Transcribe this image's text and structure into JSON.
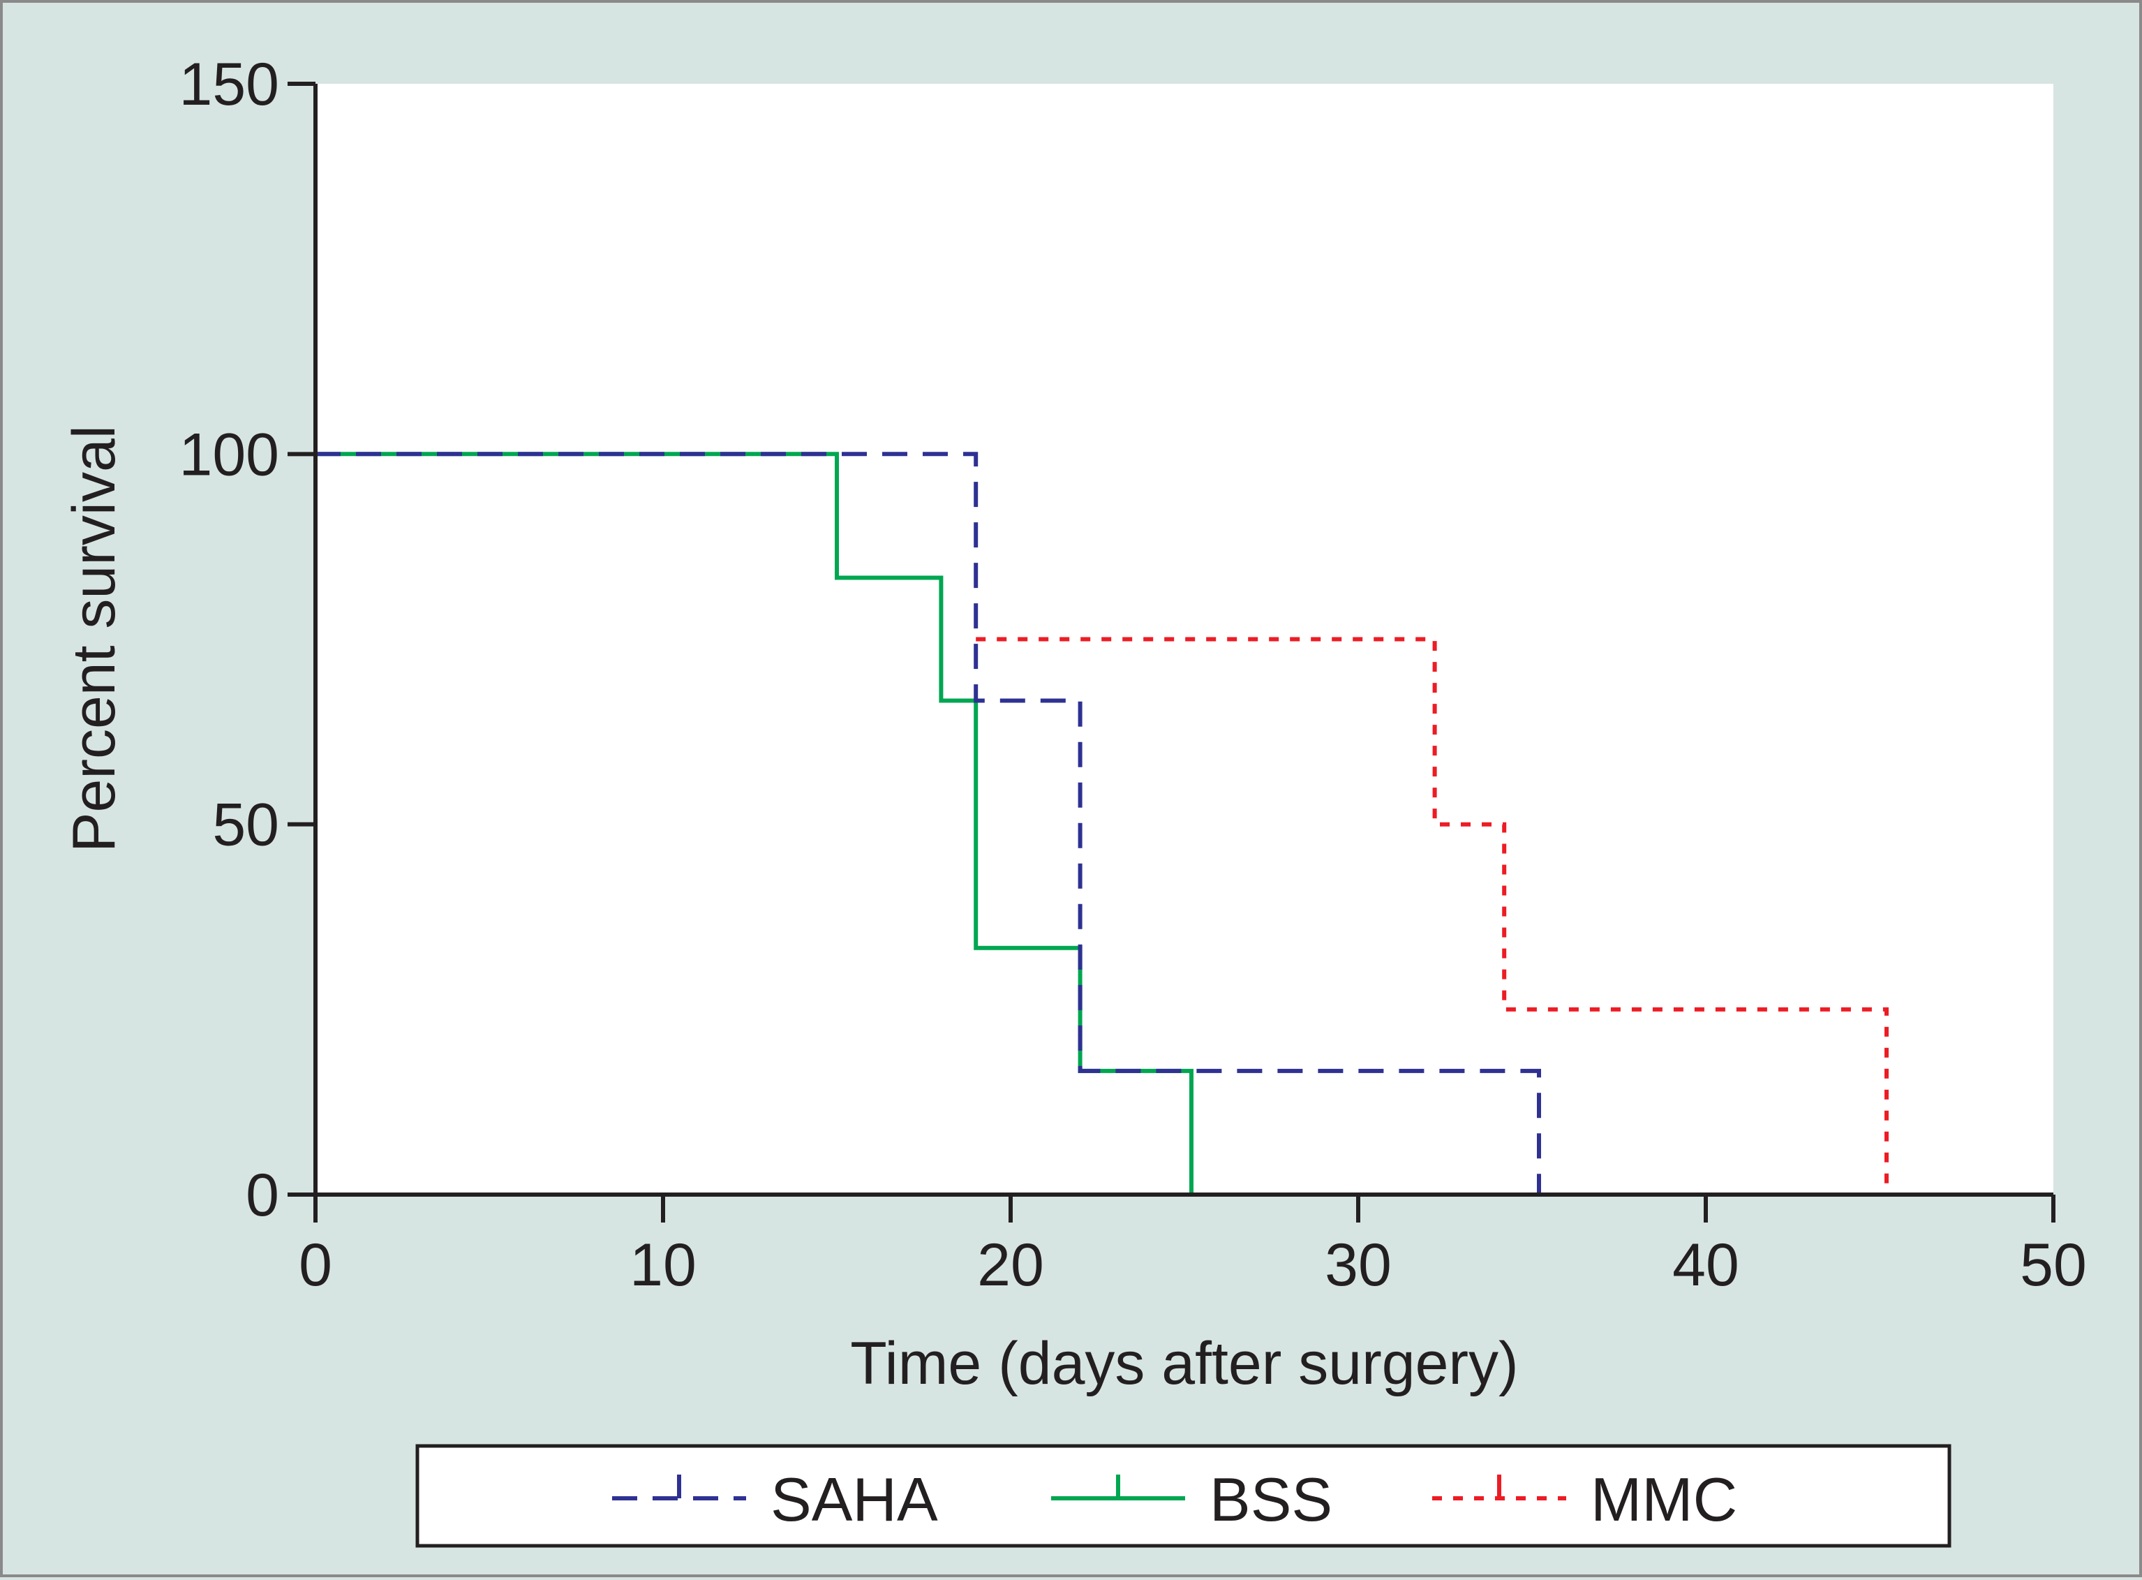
{
  "chart_data": {
    "type": "line",
    "subtype": "kaplan-meier-step",
    "title": "",
    "xlabel": "Time (days after surgery)",
    "ylabel": "Percent survival",
    "xlim": [
      0,
      50
    ],
    "ylim": [
      0,
      150
    ],
    "x_ticks": [
      0,
      10,
      20,
      30,
      40,
      50
    ],
    "y_ticks": [
      0,
      50,
      100,
      150
    ],
    "x_tick_labels": [
      "0",
      "10",
      "20",
      "30",
      "40",
      "50"
    ],
    "y_tick_labels": [
      "0",
      "50",
      "100",
      "150"
    ],
    "grid": false,
    "legend_position": "bottom",
    "series": [
      {
        "name": "SAHA",
        "color": "#2e3192",
        "line_style": "dashed",
        "points": [
          [
            0,
            100
          ],
          [
            19,
            100
          ],
          [
            19,
            66.7
          ],
          [
            22,
            66.7
          ],
          [
            22,
            16.7
          ],
          [
            35.2,
            16.7
          ],
          [
            35.2,
            0
          ]
        ]
      },
      {
        "name": "BSS",
        "color": "#00a651",
        "line_style": "solid",
        "points": [
          [
            0,
            100
          ],
          [
            15,
            100
          ],
          [
            15,
            83.3
          ],
          [
            18,
            83.3
          ],
          [
            18,
            66.7
          ],
          [
            19,
            66.7
          ],
          [
            19,
            33.3
          ],
          [
            22,
            33.3
          ],
          [
            22,
            16.7
          ],
          [
            25.2,
            16.7
          ],
          [
            25.2,
            0
          ]
        ]
      },
      {
        "name": "MMC",
        "color": "#ed1c24",
        "line_style": "dotted",
        "points": [
          [
            19,
            75
          ],
          [
            32.2,
            75
          ],
          [
            32.2,
            50
          ],
          [
            34.2,
            50
          ],
          [
            34.2,
            25
          ],
          [
            45.2,
            25
          ],
          [
            45.2,
            0
          ]
        ]
      }
    ]
  },
  "legend": {
    "items": [
      {
        "label": "SAHA",
        "color": "#2e3192",
        "line_style": "dashed"
      },
      {
        "label": "BSS",
        "color": "#00a651",
        "line_style": "solid"
      },
      {
        "label": "MMC",
        "color": "#ed1c24",
        "line_style": "dotted"
      }
    ]
  }
}
